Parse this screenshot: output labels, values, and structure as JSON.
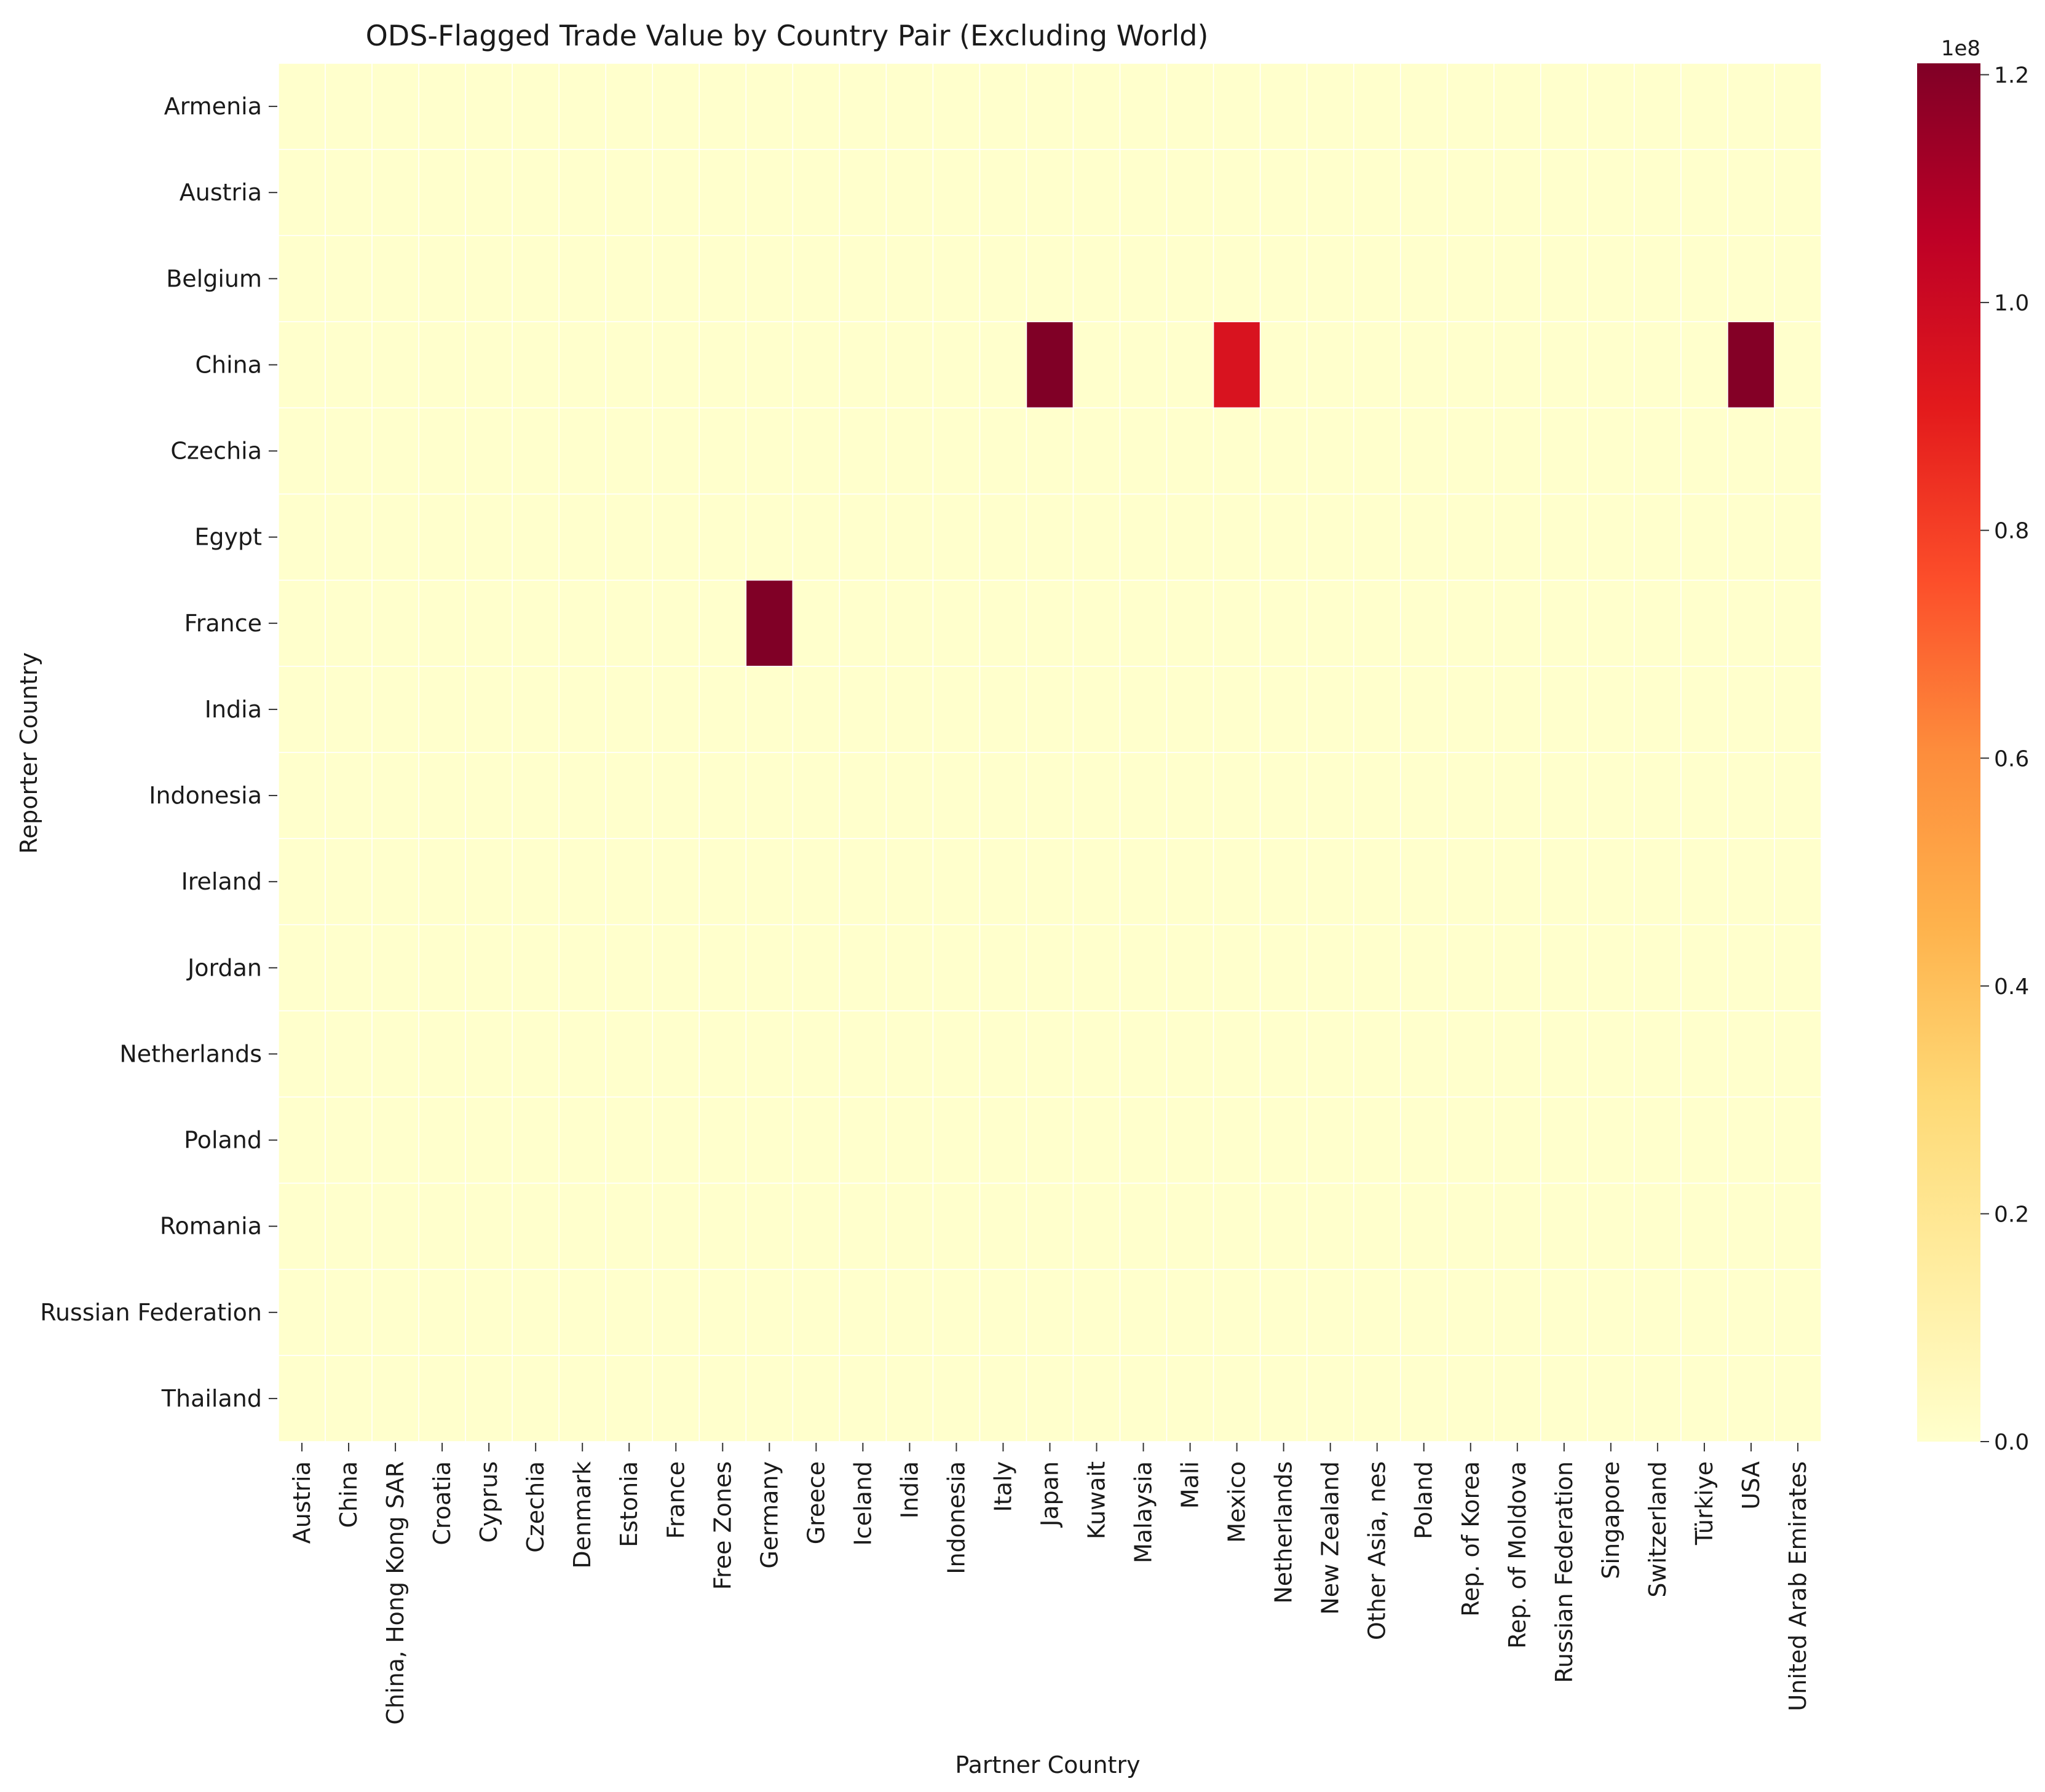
{
  "chart_data": {
    "type": "heatmap",
    "title": "ODS-Flagged Trade Value by Country Pair (Excluding World)",
    "xlabel": "Partner Country",
    "ylabel": "Reporter Country",
    "rows": [
      "Armenia",
      "Austria",
      "Belgium",
      "China",
      "Czechia",
      "Egypt",
      "France",
      "India",
      "Indonesia",
      "Ireland",
      "Jordan",
      "Netherlands",
      "Poland",
      "Romania",
      "Russian Federation",
      "Thailand"
    ],
    "columns": [
      "Austria",
      "China",
      "China, Hong Kong SAR",
      "Croatia",
      "Cyprus",
      "Czechia",
      "Denmark",
      "Estonia",
      "France",
      "Free Zones",
      "Germany",
      "Greece",
      "Iceland",
      "India",
      "Indonesia",
      "Italy",
      "Japan",
      "Kuwait",
      "Malaysia",
      "Mali",
      "Mexico",
      "Netherlands",
      "New Zealand",
      "Other Asia, nes",
      "Poland",
      "Rep. of Korea",
      "Rep. of Moldova",
      "Russian Federation",
      "Singapore",
      "Switzerland",
      "Türkiye",
      "USA",
      "United Arab Emirates"
    ],
    "nonzero_cells": [
      {
        "row": "China",
        "column": "Japan",
        "value": 121000000
      },
      {
        "row": "China",
        "column": "Mexico",
        "value": 95000000
      },
      {
        "row": "China",
        "column": "USA",
        "value": 120000000
      },
      {
        "row": "France",
        "column": "Germany",
        "value": 121000000
      }
    ],
    "default_value": 0,
    "colorbar": {
      "colormap": "YlOrRd",
      "range": [
        0,
        121000000
      ],
      "ticks": [
        0,
        20000000,
        40000000,
        60000000,
        80000000,
        100000000,
        120000000
      ],
      "tick_labels": [
        "0.0",
        "0.2",
        "0.4",
        "0.6",
        "0.8",
        "1.0",
        "1.2"
      ],
      "scale_label": "1e8"
    },
    "colors": {
      "low": "#ffffcc",
      "high": "#800026",
      "grid_line": "#ffffff"
    }
  }
}
